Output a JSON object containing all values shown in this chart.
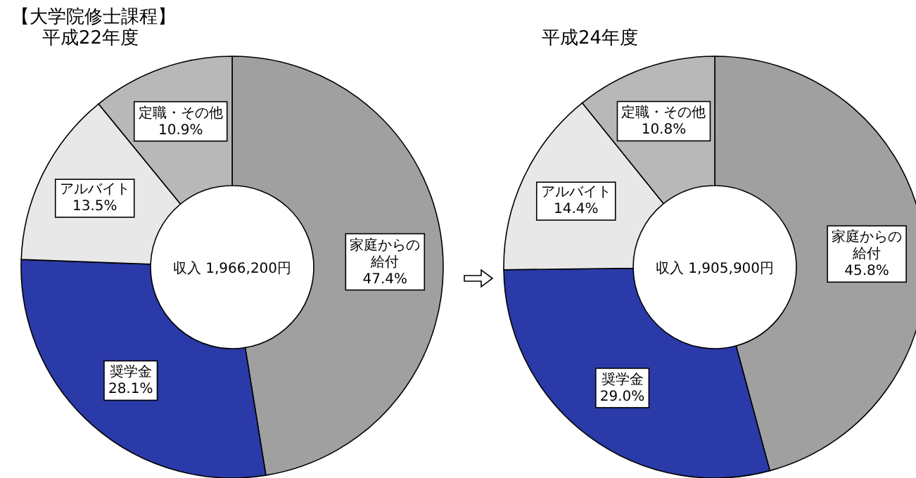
{
  "chart_data": [
    {
      "type": "donut",
      "title": "【大学院修士課程】",
      "subtitle": "平成22年度",
      "categories": [
        "家庭からの給付",
        "奨学金",
        "アルバイト",
        "定職・その他"
      ],
      "values": [
        47.4,
        28.1,
        13.5,
        10.9
      ],
      "value_labels": [
        "47.4%",
        "28.1%",
        "13.5%",
        "10.9%"
      ],
      "colors": [
        "#a0a0a0",
        "#2a3aa8",
        "#e8e8e8",
        "#b8b8b8"
      ],
      "annotations": [
        "収入 1,966,200円"
      ]
    },
    {
      "type": "donut",
      "title": "平成24年度",
      "categories": [
        "家庭からの給付",
        "奨学金",
        "アルバイト",
        "定職・その他"
      ],
      "values": [
        45.8,
        29.0,
        14.4,
        10.8
      ],
      "value_labels": [
        "45.8%",
        "29.0%",
        "14.4%",
        "10.8%"
      ],
      "colors": [
        "#a0a0a0",
        "#2a3aa8",
        "#e8e8e8",
        "#b8b8b8"
      ],
      "annotations": [
        "収入 1,905,900円"
      ]
    }
  ]
}
